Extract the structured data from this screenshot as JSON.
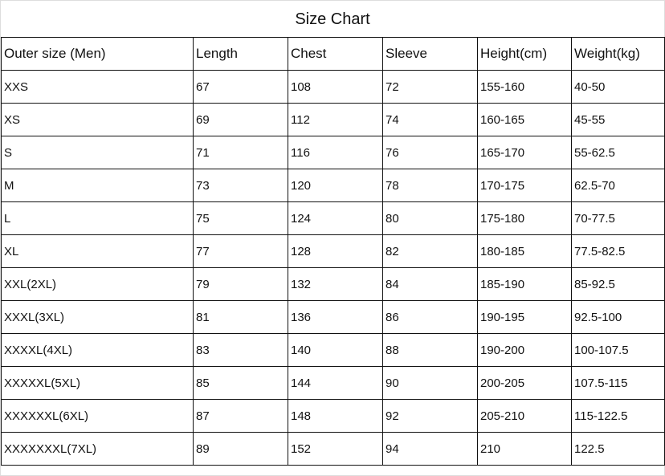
{
  "title": "Size Chart",
  "headers": [
    "Outer size (Men)",
    "Length",
    "Chest",
    "Sleeve",
    "Height(cm)",
    "Weight(kg)"
  ],
  "rows": [
    [
      "XXS",
      "67",
      "108",
      "72",
      "155-160",
      "40-50"
    ],
    [
      "XS",
      "69",
      "112",
      "74",
      "160-165",
      "45-55"
    ],
    [
      "S",
      "71",
      "116",
      "76",
      "165-170",
      "55-62.5"
    ],
    [
      "M",
      "73",
      "120",
      "78",
      "170-175",
      "62.5-70"
    ],
    [
      "L",
      "75",
      "124",
      "80",
      "175-180",
      "70-77.5"
    ],
    [
      "XL",
      "77",
      "128",
      "82",
      "180-185",
      "77.5-82.5"
    ],
    [
      "XXL(2XL)",
      "79",
      "132",
      "84",
      "185-190",
      "85-92.5"
    ],
    [
      "XXXL(3XL)",
      "81",
      "136",
      "86",
      "190-195",
      "92.5-100"
    ],
    [
      "XXXXL(4XL)",
      "83",
      "140",
      "88",
      "190-200",
      "100-107.5"
    ],
    [
      "XXXXXL(5XL)",
      "85",
      "144",
      "90",
      "200-205",
      "107.5-115"
    ],
    [
      "XXXXXXL(6XL)",
      "87",
      "148",
      "92",
      "205-210",
      "115-122.5"
    ],
    [
      "XXXXXXXL(7XL)",
      "89",
      "152",
      "94",
      "210",
      "122.5"
    ]
  ]
}
